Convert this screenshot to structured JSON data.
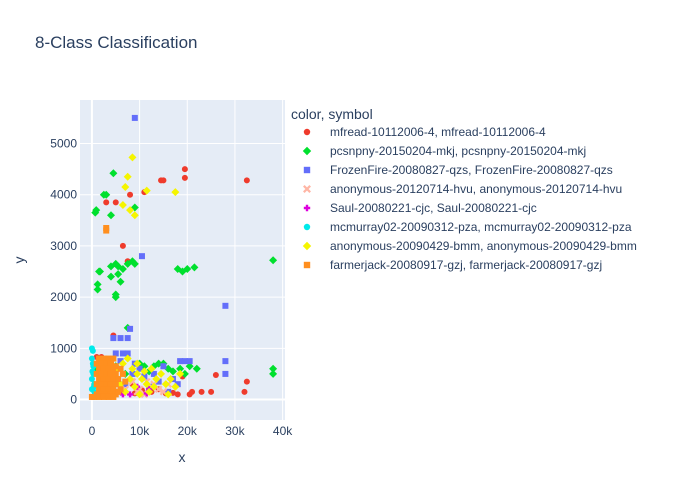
{
  "chart_data": {
    "type": "scatter",
    "title": "8-Class Classification",
    "xlabel": "x",
    "ylabel": "y",
    "xlim": [
      -2500,
      40500
    ],
    "ylim": [
      -400,
      5850
    ],
    "x_ticks": [
      0,
      10000,
      20000,
      30000,
      40000
    ],
    "x_tick_labels": [
      "0",
      "10k",
      "20k",
      "30k",
      "40k"
    ],
    "y_ticks": [
      0,
      1000,
      2000,
      3000,
      4000,
      5000
    ],
    "y_tick_labels": [
      "0",
      "1000",
      "2000",
      "3000",
      "4000",
      "5000"
    ],
    "grid": true,
    "legend_title": "color, symbol",
    "legend_position": "right",
    "series": [
      {
        "name": "mfread-10112006-4, mfread-10112006-4",
        "color": "#ef3b2c",
        "symbol": "circle",
        "points": [
          [
            3000,
            3850
          ],
          [
            5000,
            3850
          ],
          [
            6500,
            3000
          ],
          [
            7500,
            2700
          ],
          [
            8000,
            4000
          ],
          [
            11000,
            4050
          ],
          [
            14500,
            4280
          ],
          [
            15000,
            4280
          ],
          [
            19500,
            4500
          ],
          [
            19500,
            4330
          ],
          [
            32500,
            4280
          ],
          [
            4500,
            1250
          ],
          [
            32500,
            350
          ],
          [
            32000,
            150
          ],
          [
            25000,
            150
          ],
          [
            23000,
            150
          ],
          [
            20500,
            100
          ],
          [
            18000,
            100
          ],
          [
            15500,
            120
          ],
          [
            12500,
            150
          ],
          [
            9000,
            120
          ],
          [
            6000,
            150
          ],
          [
            3500,
            200
          ],
          [
            1500,
            100
          ],
          [
            500,
            300
          ],
          [
            2000,
            830
          ],
          [
            3000,
            640
          ],
          [
            1000,
            830
          ],
          [
            19000,
            450
          ],
          [
            26000,
            480
          ],
          [
            17000,
            130
          ],
          [
            14000,
            200
          ],
          [
            21000,
            150
          ],
          [
            8500,
            300
          ],
          [
            10500,
            180
          ]
        ]
      },
      {
        "name": "pcsnpny-20150204-mkj, pcsnpny-20150204-mkj",
        "color": "#00e02e",
        "symbol": "diamond",
        "points": [
          [
            700,
            3650
          ],
          [
            900,
            3700
          ],
          [
            2500,
            4000
          ],
          [
            3000,
            4000
          ],
          [
            4500,
            4420
          ],
          [
            5000,
            2650
          ],
          [
            5500,
            2600
          ],
          [
            6500,
            2550
          ],
          [
            7500,
            2650
          ],
          [
            8500,
            2700
          ],
          [
            9000,
            2650
          ],
          [
            1500,
            2500
          ],
          [
            1200,
            2250
          ],
          [
            1200,
            2150
          ],
          [
            1700,
            2500
          ],
          [
            4000,
            2400
          ],
          [
            5000,
            2000
          ],
          [
            5000,
            2050
          ],
          [
            5500,
            2450
          ],
          [
            4000,
            2600
          ],
          [
            6000,
            2300
          ],
          [
            18000,
            2550
          ],
          [
            19000,
            2500
          ],
          [
            20000,
            2550
          ],
          [
            21500,
            2580
          ],
          [
            38000,
            2720
          ],
          [
            7500,
            1400
          ],
          [
            4000,
            3600
          ],
          [
            38000,
            600
          ],
          [
            38000,
            500
          ],
          [
            9000,
            3750
          ],
          [
            2000,
            500
          ],
          [
            5000,
            650
          ],
          [
            10000,
            700
          ],
          [
            13000,
            650
          ],
          [
            15000,
            700
          ],
          [
            17000,
            550
          ],
          [
            19500,
            500
          ],
          [
            22000,
            600
          ],
          [
            16000,
            600
          ],
          [
            12000,
            550
          ],
          [
            3000,
            600
          ],
          [
            7000,
            500
          ],
          [
            11000,
            650
          ],
          [
            14000,
            700
          ],
          [
            20500,
            650
          ],
          [
            18500,
            600
          ],
          [
            1000,
            600
          ]
        ]
      },
      {
        "name": "FrozenFire-20080827-qzs, FrozenFire-20080827-qzs",
        "color": "#636efa",
        "symbol": "square",
        "points": [
          [
            9000,
            5500
          ],
          [
            10500,
            2800
          ],
          [
            8000,
            1380
          ],
          [
            28000,
            1830
          ],
          [
            28000,
            750
          ],
          [
            28000,
            500
          ],
          [
            5000,
            900
          ],
          [
            6500,
            900
          ],
          [
            7500,
            900
          ],
          [
            6000,
            1200
          ],
          [
            7500,
            1200
          ],
          [
            4500,
            1200
          ],
          [
            18500,
            750
          ],
          [
            19500,
            750
          ],
          [
            20500,
            750
          ],
          [
            13000,
            500
          ],
          [
            9000,
            700
          ],
          [
            15000,
            650
          ],
          [
            17000,
            400
          ],
          [
            11000,
            450
          ],
          [
            5000,
            400
          ],
          [
            7000,
            300
          ],
          [
            12000,
            250
          ],
          [
            14000,
            350
          ],
          [
            16000,
            150
          ],
          [
            10000,
            600
          ],
          [
            6000,
            750
          ],
          [
            4000,
            600
          ],
          [
            8500,
            500
          ],
          [
            18000,
            300
          ]
        ]
      },
      {
        "name": "anonymous-20120714-hvu, anonymous-20120714-hvu",
        "color": "#ffb6a5",
        "symbol": "x",
        "points": [
          [
            8500,
            350
          ],
          [
            10000,
            200
          ],
          [
            11000,
            100
          ],
          [
            12500,
            250
          ],
          [
            14000,
            200
          ],
          [
            15000,
            150
          ],
          [
            13000,
            300
          ],
          [
            9500,
            150
          ],
          [
            16000,
            300
          ],
          [
            11500,
            350
          ],
          [
            7000,
            200
          ]
        ]
      },
      {
        "name": "Saul-20080221-cjc, Saul-20080221-cjc",
        "color": "#dd00dd",
        "symbol": "cross",
        "points": [
          [
            8000,
            100
          ],
          [
            11500,
            120
          ],
          [
            12000,
            200
          ],
          [
            9500,
            250
          ],
          [
            6500,
            100
          ]
        ]
      },
      {
        "name": "mcmurray02-20090312-pza, mcmurray02-20090312-pza",
        "color": "#00eaea",
        "symbol": "circle",
        "points": [
          [
            0,
            1000
          ],
          [
            200,
            950
          ],
          [
            0,
            800
          ],
          [
            200,
            700
          ],
          [
            300,
            500
          ],
          [
            500,
            300
          ],
          [
            0,
            200
          ],
          [
            500,
            150
          ],
          [
            800,
            80
          ],
          [
            0,
            400
          ],
          [
            300,
            650
          ],
          [
            100,
            550
          ],
          [
            400,
            250
          ]
        ]
      },
      {
        "name": "anonymous-20090429-bmm, anonymous-20090429-bmm",
        "color": "#f5f500",
        "symbol": "diamond",
        "points": [
          [
            8500,
            4730
          ],
          [
            7500,
            4350
          ],
          [
            7000,
            4150
          ],
          [
            9000,
            3600
          ],
          [
            8000,
            3700
          ],
          [
            11500,
            4080
          ],
          [
            17500,
            4050
          ],
          [
            6500,
            3800
          ],
          [
            6500,
            700
          ],
          [
            7500,
            800
          ],
          [
            8500,
            600
          ],
          [
            9500,
            500
          ],
          [
            10500,
            400
          ],
          [
            11500,
            300
          ],
          [
            12500,
            600
          ],
          [
            14500,
            500
          ],
          [
            16500,
            400
          ],
          [
            18500,
            500
          ],
          [
            17500,
            250
          ],
          [
            6000,
            300
          ],
          [
            7000,
            150
          ],
          [
            8000,
            400
          ],
          [
            9000,
            250
          ],
          [
            10000,
            100
          ],
          [
            11000,
            550
          ],
          [
            12000,
            150
          ],
          [
            13500,
            400
          ],
          [
            15500,
            300
          ],
          [
            9500,
            700
          ],
          [
            5500,
            600
          ],
          [
            13000,
            250
          ],
          [
            16000,
            100
          ]
        ]
      },
      {
        "name": "farmerjack-20080917-gzj, farmerjack-20080917-gzj",
        "color": "#ff8f1f",
        "symbol": "square",
        "points": [
          [
            3000,
            3350
          ],
          [
            3000,
            3300
          ],
          [
            1500,
            800
          ],
          [
            2500,
            800
          ],
          [
            3500,
            800
          ],
          [
            4500,
            800
          ],
          [
            1000,
            700
          ],
          [
            2000,
            700
          ],
          [
            3000,
            700
          ],
          [
            4000,
            700
          ],
          [
            5000,
            650
          ],
          [
            6000,
            600
          ],
          [
            1500,
            600
          ],
          [
            2500,
            600
          ],
          [
            3500,
            600
          ],
          [
            4500,
            600
          ],
          [
            1000,
            500
          ],
          [
            2000,
            500
          ],
          [
            3000,
            500
          ],
          [
            4000,
            500
          ],
          [
            5000,
            500
          ],
          [
            1500,
            400
          ],
          [
            2500,
            400
          ],
          [
            3500,
            400
          ],
          [
            4500,
            400
          ],
          [
            5500,
            400
          ],
          [
            1000,
            300
          ],
          [
            2000,
            300
          ],
          [
            3000,
            300
          ],
          [
            4000,
            300
          ],
          [
            5000,
            300
          ],
          [
            1500,
            200
          ],
          [
            2500,
            200
          ],
          [
            3500,
            200
          ],
          [
            4500,
            200
          ],
          [
            6000,
            200
          ],
          [
            1000,
            100
          ],
          [
            2000,
            100
          ],
          [
            3000,
            100
          ],
          [
            4000,
            100
          ],
          [
            5000,
            100
          ],
          [
            500,
            50
          ],
          [
            1500,
            50
          ],
          [
            2500,
            50
          ],
          [
            3500,
            50
          ],
          [
            4500,
            50
          ],
          [
            0,
            50
          ],
          [
            6500,
            500
          ],
          [
            7000,
            350
          ],
          [
            5500,
            150
          ]
        ]
      }
    ]
  }
}
